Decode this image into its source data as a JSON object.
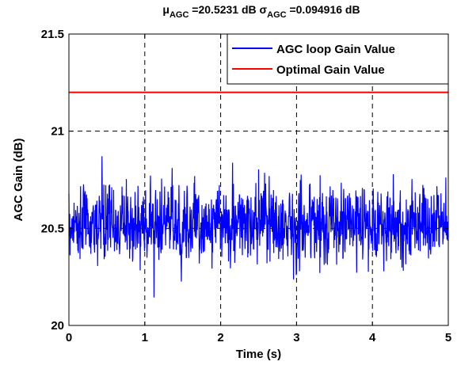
{
  "chart_data": {
    "type": "line",
    "title": {
      "mu_symbol": "μ",
      "mu_subscript": "AGC",
      "mu_value": " =20.5231 dB ",
      "sigma_symbol": "σ",
      "sigma_subscript": "AGC",
      "sigma_value": " =0.094916 dB"
    },
    "xlabel": "Time (s)",
    "ylabel": "AGC Gain (dB)",
    "xlim": [
      0,
      5
    ],
    "ylim": [
      20,
      21.5
    ],
    "x_ticks": [
      0,
      1,
      2,
      3,
      4,
      5
    ],
    "x_tick_labels": [
      "0",
      "1",
      "2",
      "3",
      "4",
      "5"
    ],
    "y_ticks": [
      20,
      20.5,
      21,
      21.5
    ],
    "y_tick_labels": [
      "20",
      "20.5",
      "21",
      "21.5"
    ],
    "grid": true,
    "grid_style": "dashed",
    "legend_position": "top-right",
    "series": [
      {
        "name": "AGC loop Gain Value",
        "color": "#0000ff",
        "style": "noisy",
        "mean": 20.5231,
        "std": 0.094916,
        "min": 20.11,
        "max": 20.92,
        "x_range": [
          0,
          5
        ]
      },
      {
        "name": "Optimal Gain Value",
        "color": "#ff0000",
        "style": "constant",
        "x": [
          0,
          5
        ],
        "y": [
          21.2,
          21.2
        ]
      }
    ]
  }
}
